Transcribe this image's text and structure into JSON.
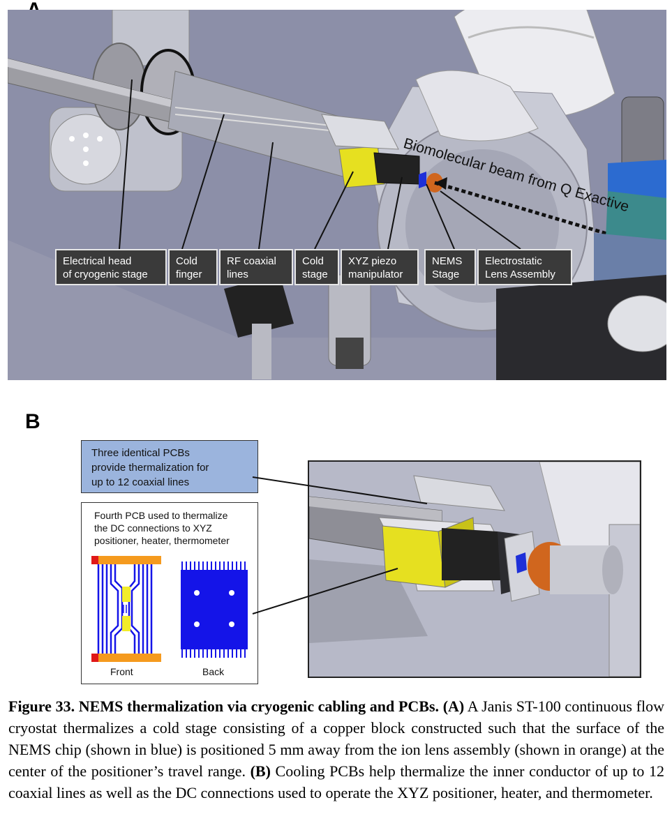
{
  "panel_a": {
    "letter": "A",
    "labels": [
      {
        "id": "electrical-head",
        "text": "Electrical head\nof cryogenic stage"
      },
      {
        "id": "cold-finger",
        "text": "Cold\nfinger"
      },
      {
        "id": "rf-coaxial",
        "text": "RF coaxial\nlines"
      },
      {
        "id": "cold-stage",
        "text": "Cold\nstage"
      },
      {
        "id": "xyz-piezo",
        "text": "XYZ piezo\nmanipulator"
      },
      {
        "id": "nems-stage",
        "text": "NEMS\nStage"
      },
      {
        "id": "electrostatic-lens",
        "text": "Electrostatic\nLens Assembly"
      }
    ],
    "beam_label": "Biomolecular beam from Q Exactive"
  },
  "panel_b": {
    "letter": "B",
    "pcb_note": "Three identical PCBs\nprovide thermalization for\nup to 12 coaxial lines",
    "dc_note": "Fourth PCB used to thermalize\nthe DC connections to XYZ\npositioner, heater, thermometer",
    "front_label": "Front",
    "back_label": "Back"
  },
  "caption": {
    "figure_title": "Figure 33. NEMS thermalization via cryogenic cabling and PCBs.",
    "part_a_marker": "(A)",
    "part_a_text": "A Janis ST-100 continuous flow cryostat thermalizes a cold stage consisting of a copper block constructed such that the surface of the NEMS chip (shown in blue) is positioned 5 mm away from the ion lens assembly (shown in orange) at the center of the positioner’s travel range.",
    "part_b_marker": "(B)",
    "part_b_text": "Cooling PCBs help thermalize the inner conductor of up to 12 coaxial lines as well as the DC connections used to operate the XYZ positioner, heater, and thermometer."
  },
  "colors": {
    "nems_blue": "#1e2fd8",
    "lens_orange": "#d0661e",
    "cold_stage_yellow": "#e6e020",
    "pcb_blue": "#1414e8",
    "pcb_orange": "#f59a1e"
  }
}
